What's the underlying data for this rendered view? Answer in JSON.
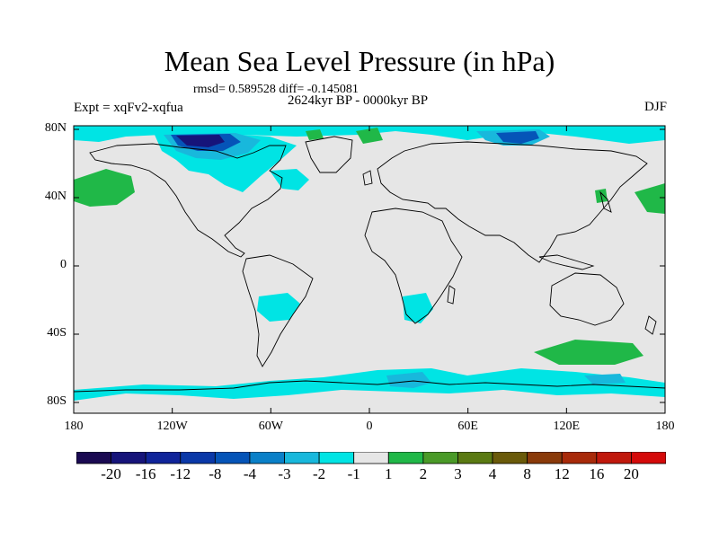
{
  "title": "Mean Sea Level Pressure (in hPa)",
  "stats": "rmsd= 0.589528 diff= -0.145081",
  "experiment": "Expt = xqFv2-xqfua",
  "period": "2624kyr BP - 0000kyr BP",
  "season": "DJF",
  "lat_labels": [
    "80N",
    "40N",
    "0",
    "40S",
    "80S"
  ],
  "lat_values": [
    80,
    40,
    0,
    -40,
    -80
  ],
  "lon_labels": [
    "180",
    "120W",
    "60W",
    "0",
    "60E",
    "120E",
    "180"
  ],
  "lon_values": [
    -180,
    -120,
    -60,
    0,
    60,
    120,
    180
  ],
  "colorbar": {
    "labels": [
      "-20",
      "-16",
      "-12",
      "-8",
      "-4",
      "-3",
      "-2",
      "-1",
      "1",
      "2",
      "3",
      "4",
      "8",
      "12",
      "16",
      "20"
    ],
    "colors": [
      "#1a0a52",
      "#16147a",
      "#10249a",
      "#0a38a8",
      "#0554b8",
      "#0a80c8",
      "#18b8dc",
      "#00e4e4",
      "#e6e6e6",
      "#20b848",
      "#4a9a28",
      "#5a7a12",
      "#6a5a0a",
      "#8a3a0a",
      "#a82a0a",
      "#c0180c",
      "#d40a0a"
    ]
  },
  "colors": {
    "background": "#e6e6e6",
    "neg1": "#00e4e4",
    "neg2": "#18b8dc",
    "neg4": "#0554b8",
    "neg8": "#16147a",
    "pos1": "#20b848"
  }
}
